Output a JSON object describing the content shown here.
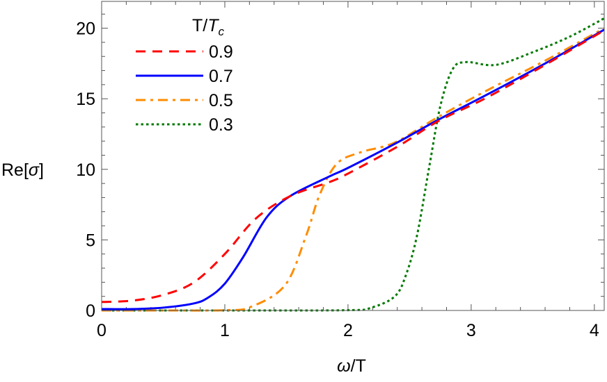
{
  "chart_data": {
    "type": "line",
    "title": "",
    "xlabel": {
      "italic": "ω",
      "rest": "/T"
    },
    "ylabel": {
      "prefix": "Re[",
      "italic": "σ",
      "suffix": "]"
    },
    "xlim": [
      0,
      4.08
    ],
    "ylim": [
      0,
      21.9
    ],
    "xticks": [
      0,
      1,
      2,
      3,
      4
    ],
    "yticks": [
      0,
      5,
      10,
      15,
      20
    ],
    "xtick_labels": [
      "0",
      "1",
      "2",
      "3",
      "4"
    ],
    "ytick_labels": [
      "0",
      "5",
      "10",
      "15",
      "20"
    ],
    "grid": false,
    "legend": {
      "placement": "top-left",
      "title": {
        "main": "T/",
        "italic": "T",
        "sub": "c"
      }
    },
    "series": [
      {
        "name": "0.9",
        "color": "#ff0000",
        "style": "dashed",
        "x": [
          0,
          0.25,
          0.5,
          0.75,
          1.0,
          1.25,
          1.53,
          1.85,
          2.0,
          2.4,
          2.73,
          3.13,
          3.6,
          4.08
        ],
        "y": [
          0.6,
          0.7,
          1.1,
          2.0,
          4.0,
          6.5,
          8.1,
          9.1,
          9.7,
          11.6,
          13.4,
          15.1,
          17.4,
          19.85
        ]
      },
      {
        "name": "0.7",
        "color": "#0000ff",
        "style": "solid",
        "x": [
          0,
          0.25,
          0.5,
          0.75,
          0.87,
          1.0,
          1.15,
          1.34,
          1.53,
          1.85,
          2.0,
          2.4,
          2.73,
          3.13,
          3.6,
          4.08
        ],
        "y": [
          0.1,
          0.1,
          0.2,
          0.5,
          0.94,
          1.9,
          3.8,
          6.6,
          8.1,
          9.5,
          10.1,
          11.9,
          13.5,
          15.3,
          17.5,
          19.9
        ]
      },
      {
        "name": "0.5",
        "color": "#ff8c00",
        "style": "dashdot",
        "x": [
          0,
          0.5,
          1.0,
          1.21,
          1.49,
          1.66,
          1.77,
          1.91,
          2.1,
          2.38,
          2.73,
          3.13,
          3.6,
          4.08
        ],
        "y": [
          0.0,
          0.0,
          0.02,
          0.25,
          1.8,
          5.3,
          8.2,
          10.4,
          11.2,
          11.9,
          13.7,
          15.6,
          17.7,
          20.0
        ]
      },
      {
        "name": "0.3",
        "color": "#007a00",
        "style": "dotted",
        "x": [
          0,
          1.0,
          2.0,
          2.19,
          2.38,
          2.47,
          2.56,
          2.66,
          2.75,
          2.85,
          2.96,
          3.2,
          3.5,
          3.8,
          4.08
        ],
        "y": [
          0.0,
          0.0,
          0.02,
          0.2,
          1.0,
          2.5,
          5.3,
          10.2,
          14.5,
          17.1,
          17.6,
          17.4,
          18.3,
          19.4,
          20.7
        ]
      }
    ]
  }
}
